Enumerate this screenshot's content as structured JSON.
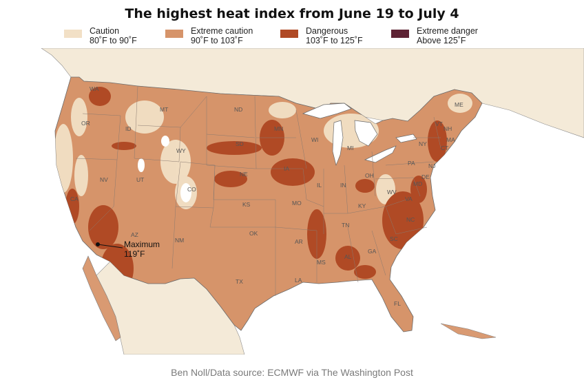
{
  "title": "The highest heat index from June 19 to July 4",
  "legend": [
    {
      "label": "Caution",
      "range": "80˚F to 90˚F",
      "color": "#f2e0c6"
    },
    {
      "label": "Extreme caution",
      "range": "90˚F to 103˚F",
      "color": "#d6946a"
    },
    {
      "label": "Dangerous",
      "range": "103˚F to 125˚F",
      "color": "#b04a25"
    },
    {
      "label": "Extreme danger",
      "range": "Above 125˚F",
      "color": "#5e2334"
    }
  ],
  "annotation": {
    "line1": "Maximum",
    "line2": "119˚F"
  },
  "states": [
    "WA",
    "OR",
    "CA",
    "NV",
    "ID",
    "MT",
    "WY",
    "UT",
    "AZ",
    "CO",
    "NM",
    "ND",
    "SD",
    "NE",
    "KS",
    "OK",
    "TX",
    "MN",
    "IA",
    "MO",
    "AR",
    "LA",
    "WI",
    "IL",
    "MS",
    "MI",
    "IN",
    "KY",
    "TN",
    "AL",
    "OH",
    "GA",
    "FL",
    "PA",
    "WV",
    "VA",
    "NC",
    "SC",
    "NY",
    "VT",
    "NH",
    "ME",
    "MA",
    "CT",
    "NJ",
    "DE",
    "MD"
  ],
  "credit": "Ben Noll/Data source: ECMWF via The Washington Post",
  "colors": {
    "water": "#ffffff",
    "border": "#8a7a70",
    "coast": "#6a6a6a"
  }
}
